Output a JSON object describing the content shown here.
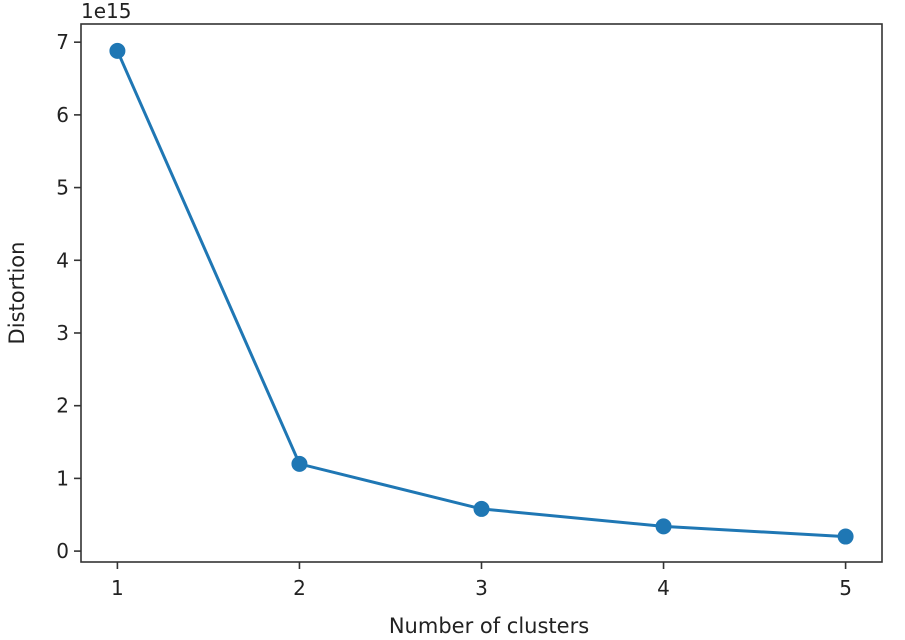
{
  "chart_data": {
    "type": "line",
    "title": "",
    "xlabel": "Number of clusters",
    "ylabel": "Distortion",
    "y_offset_label": "1e15",
    "x": [
      1,
      2,
      3,
      4,
      5
    ],
    "x_tick_labels": [
      "1",
      "2",
      "3",
      "4",
      "5"
    ],
    "xlim": [
      0.8,
      5.2
    ],
    "y_ticks": [
      0,
      1,
      2,
      3,
      4,
      5,
      6,
      7
    ],
    "y_tick_labels": [
      "0",
      "1",
      "2",
      "3",
      "4",
      "5",
      "6",
      "7"
    ],
    "ylim": [
      -0.15,
      7.25
    ],
    "series": [
      {
        "values": [
          6.88,
          1.2,
          0.58,
          0.34,
          0.2
        ]
      }
    ],
    "grid": false,
    "legend": "none",
    "colors": {
      "line": "#1f77b4",
      "marker": "#1f77b4",
      "axes": "#333333"
    }
  }
}
